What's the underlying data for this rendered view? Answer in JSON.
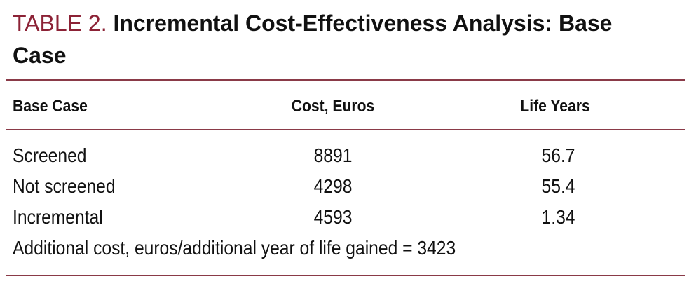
{
  "title": {
    "label": "TABLE 2.",
    "text": "Incremental Cost-Effectiveness Analysis: Base Case"
  },
  "table": {
    "header": [
      "Base Case",
      "Cost, Euros",
      "Life Years"
    ],
    "rows": [
      [
        "Screened",
        8891,
        56.7
      ],
      [
        "Not screened",
        4298,
        55.4
      ],
      [
        "Incremental",
        4593,
        1.34
      ]
    ],
    "footnote": "Additional cost, euros/additional year of life gained = 3423"
  }
}
